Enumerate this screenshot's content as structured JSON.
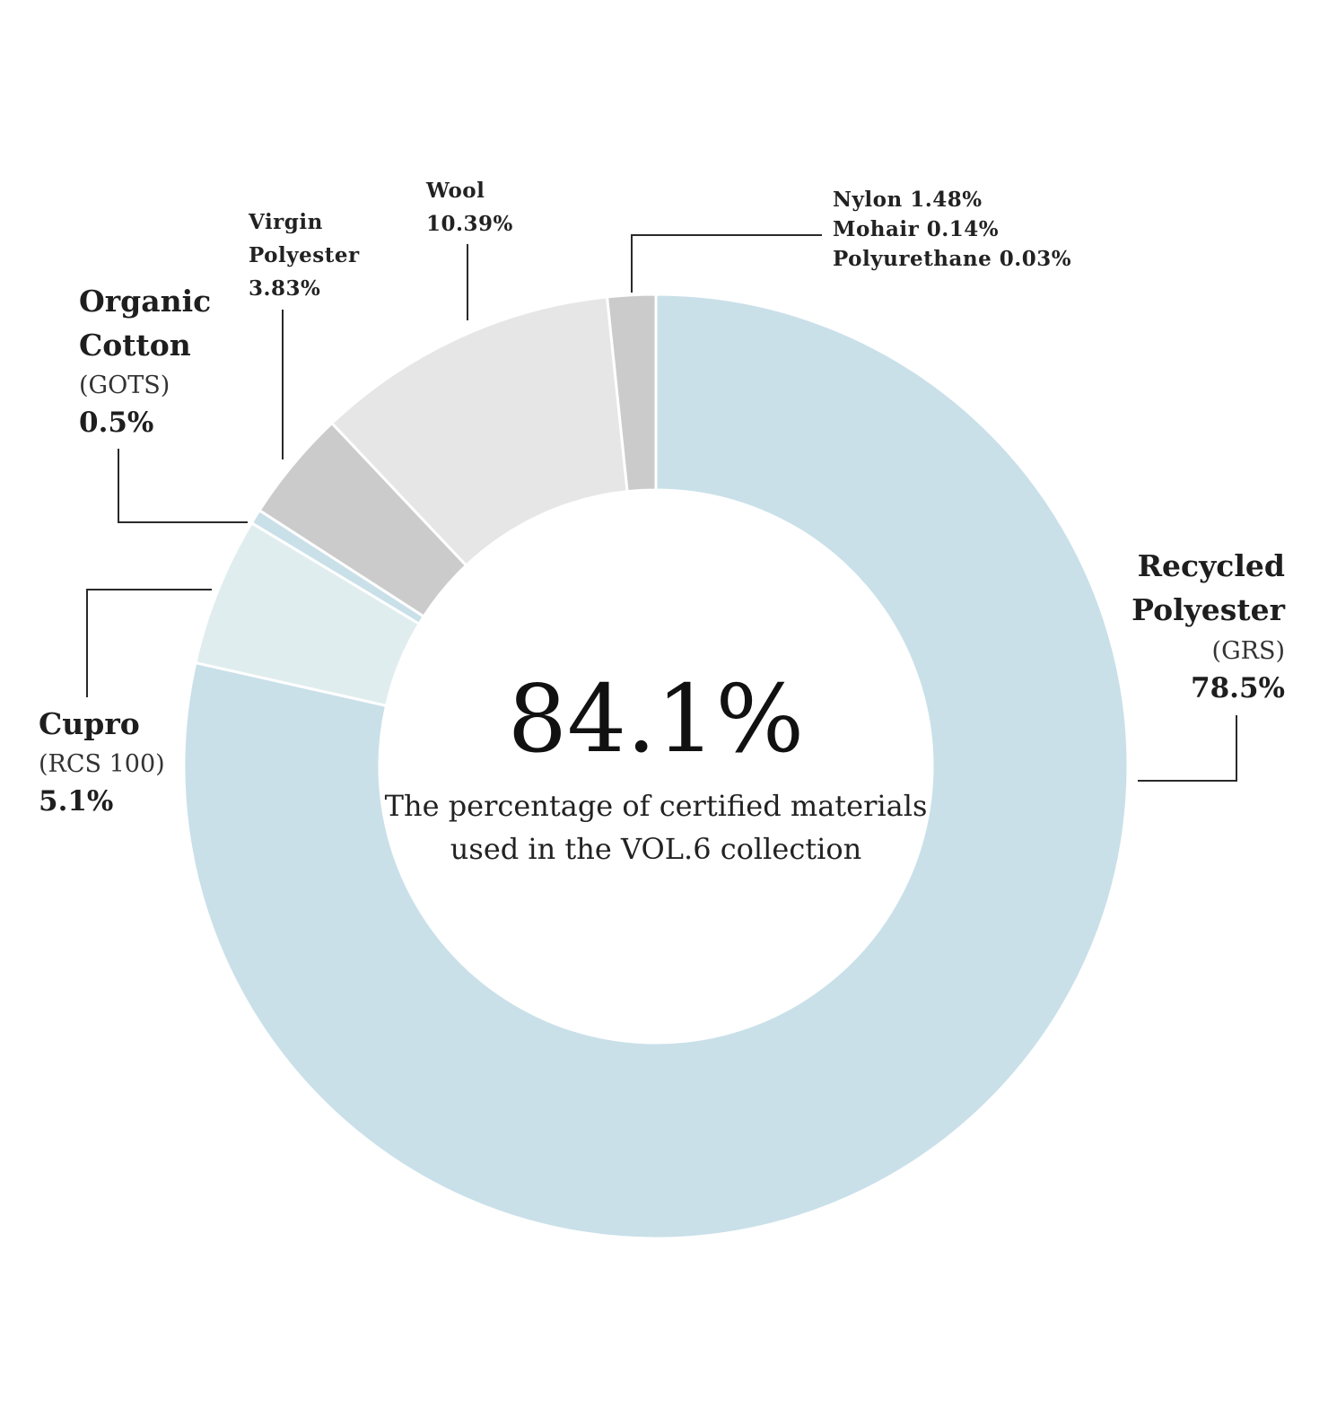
{
  "chart_data": {
    "type": "pie",
    "style": "donut",
    "center_value": "84.1%",
    "center_caption": [
      "The percentage of certified materials",
      "used in the VOL.6 collection"
    ],
    "slices": [
      {
        "key": "recycled_polyester",
        "value": 78.5,
        "color": "#c9e0e9"
      },
      {
        "key": "cupro",
        "value": 5.1,
        "color": "#e0edee"
      },
      {
        "key": "organic_cotton",
        "value": 0.5,
        "color": "#c9e0e9"
      },
      {
        "key": "virgin_polyester",
        "value": 3.83,
        "color": "#cbcbcb"
      },
      {
        "key": "wool",
        "value": 10.39,
        "color": "#e6e6e6"
      },
      {
        "key": "nylon_mohair_polyurethane",
        "value": 1.65,
        "color": "#cbcbcb"
      }
    ],
    "labels": {
      "recycled_polyester": {
        "name": [
          "Recycled",
          "Polyester"
        ],
        "cert": "(GRS)",
        "pct": "78.5%"
      },
      "cupro": {
        "name": [
          "Cupro"
        ],
        "cert": "(RCS 100)",
        "pct": "5.1%"
      },
      "organic_cotton": {
        "name": [
          "Organic",
          "Cotton"
        ],
        "cert": "(GOTS)",
        "pct": "0.5%"
      },
      "virgin_polyester": {
        "lines": [
          "Virgin",
          "Polyester",
          "3.83%"
        ]
      },
      "wool": {
        "lines": [
          "Wool",
          "10.39%"
        ]
      },
      "nylon_mohair_polyurethane": {
        "lines": [
          "Nylon 1.48%",
          "Mohair  0.14%",
          "Polyurethane  0.03%"
        ]
      }
    }
  }
}
